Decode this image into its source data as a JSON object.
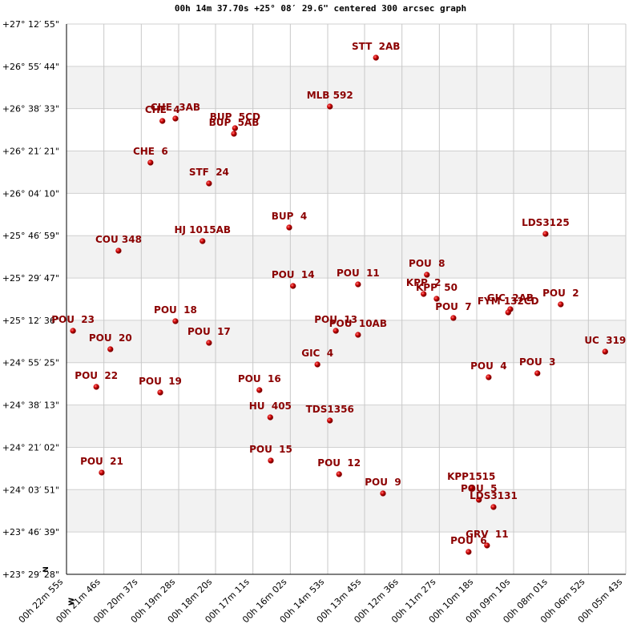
{
  "chart_data": {
    "type": "scatter",
    "title": "00h 14m 37.70s +25° 08′ 29.6\" centered 300 arcsec graph",
    "compass": {
      "north": "N",
      "west": "W"
    },
    "xlim": [
      1375,
      343
    ],
    "ylim": [
      84568,
      97975
    ],
    "grid": true,
    "stripes": true,
    "xticks": [
      {
        "value": 1375,
        "label": "00h 22m 55s"
      },
      {
        "value": 1306,
        "label": "00h 21m 46s"
      },
      {
        "value": 1237,
        "label": "00h 20m 37s"
      },
      {
        "value": 1168,
        "label": "00h 19m 28s"
      },
      {
        "value": 1100,
        "label": "00h 18m 20s"
      },
      {
        "value": 1031,
        "label": "00h 17m 11s"
      },
      {
        "value": 962,
        "label": "00h 16m 02s"
      },
      {
        "value": 893,
        "label": "00h 14m 53s"
      },
      {
        "value": 825,
        "label": "00h 13m 45s"
      },
      {
        "value": 756,
        "label": "00h 12m 36s"
      },
      {
        "value": 687,
        "label": "00h 11m 27s"
      },
      {
        "value": 618,
        "label": "00h 10m 18s"
      },
      {
        "value": 550,
        "label": "00h 09m 10s"
      },
      {
        "value": 481,
        "label": "00h 08m 01s"
      },
      {
        "value": 412,
        "label": "00h 06m 52s"
      },
      {
        "value": 343,
        "label": "00h 05m 43s"
      }
    ],
    "yticks": [
      {
        "value": 97975,
        "label": "+27° 12′ 55\""
      },
      {
        "value": 96944,
        "label": "+26° 55′ 44\""
      },
      {
        "value": 95913,
        "label": "+26° 38′ 33\""
      },
      {
        "value": 94881,
        "label": "+26° 21′ 21\""
      },
      {
        "value": 93850,
        "label": "+26° 04′ 10\""
      },
      {
        "value": 92819,
        "label": "+25° 46′ 59\""
      },
      {
        "value": 91787,
        "label": "+25° 29′ 47\""
      },
      {
        "value": 90756,
        "label": "+25° 12′ 36\""
      },
      {
        "value": 89725,
        "label": "+24° 55′ 25\""
      },
      {
        "value": 88693,
        "label": "+24° 38′ 13\""
      },
      {
        "value": 87662,
        "label": "+24° 21′ 02\""
      },
      {
        "value": 86631,
        "label": "+24° 03′ 51\""
      },
      {
        "value": 85599,
        "label": "+23° 46′ 39\""
      },
      {
        "value": 84568,
        "label": "+23° 29′ 28\""
      }
    ],
    "series": [
      {
        "color": "#cc0000",
        "label_color": "#8b0000",
        "labels": [
          "STT  2AB",
          "MLB 592",
          "CHE  4",
          "CHE  3AB",
          "BUP  5CD",
          "BUP  5AB",
          "CHE  6",
          "STF  24",
          "BUP  4",
          "LDS3125",
          "HJ 1015AB",
          "COU 348",
          "POU  8",
          "POU  14",
          "POU  11",
          "KPP  2",
          "KPP  50",
          "POU  2",
          "GIC  2AB",
          "FYM 132CD",
          "POU  7",
          "POU  23",
          "POU  18",
          "POU  13",
          "POU  10AB",
          "UC  319",
          "POU  17",
          "POU  20",
          "GIC  4",
          "POU  4",
          "POU  3",
          "POU  22",
          "POU  19",
          "POU  16",
          "HU  405",
          "TDS1356",
          "POU  21",
          "POU  15",
          "POU  12",
          "POU  9",
          "KPP1515",
          "POU  5",
          "LDS3131",
          "GRV  11",
          "POU  6"
        ],
        "x": [
          804,
          889,
          1198,
          1174,
          1064,
          1066,
          1220,
          1112,
          964,
          491,
          1124,
          1279,
          710,
          957,
          837,
          716,
          692,
          463,
          556,
          560,
          661,
          1363,
          1174,
          878,
          837,
          381,
          1112,
          1294,
          912,
          596,
          506,
          1320,
          1202,
          1019,
          999,
          889,
          1310,
          998,
          872,
          791,
          628,
          614,
          587,
          599,
          633
        ],
        "values": [
          97155,
          95965,
          95613,
          95672,
          95438,
          95301,
          94599,
          94091,
          93018,
          92862,
          92686,
          92452,
          91867,
          91593,
          91632,
          91398,
          91281,
          91145,
          91027,
          90949,
          90813,
          90501,
          90735,
          90501,
          90403,
          89993,
          90208,
          90052,
          89681,
          89369,
          89466,
          89135,
          88998,
          89056,
          88393,
          88315,
          87046,
          87339,
          87007,
          86539,
          86676,
          86383,
          86207,
          85271,
          85114
        ]
      }
    ]
  }
}
